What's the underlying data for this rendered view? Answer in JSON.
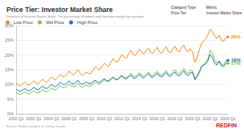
{
  "chart_data": {
    "type": "line",
    "title": "Price Tier: Investor Market Share",
    "subtitle": "Definition of Investor Market Share: The percentage of homes sold that were bought by investors",
    "filters": [
      {
        "label": "Category Type",
        "value": "Price Tier"
      },
      {
        "label": "Metric",
        "value": "Investor Market Share"
      }
    ],
    "source": "Source: Redfin analysis of county records",
    "logo": "REDFIN",
    "legend": "top-left",
    "grid": true,
    "categories": [
      "2000 Q1",
      null,
      null,
      null,
      null,
      null,
      null,
      null,
      "2002 Q1",
      null,
      null,
      null,
      null,
      null,
      null,
      null,
      "2004 Q1",
      null,
      null,
      null,
      null,
      null,
      null,
      null,
      "2006 Q1",
      null,
      null,
      null,
      null,
      null,
      null,
      null,
      "2008 Q1",
      null,
      null,
      null,
      null,
      null,
      null,
      null,
      "2010 Q1",
      null,
      null,
      null,
      null,
      null,
      null,
      null,
      "2012 Q1",
      null,
      null,
      null,
      null,
      null,
      null,
      null,
      "2014 Q1",
      null,
      null,
      null,
      null,
      null,
      null,
      null,
      "2016 Q1",
      null,
      null,
      null,
      null,
      null,
      null,
      null,
      "2018 Q1",
      null,
      null,
      null,
      null,
      null,
      null,
      null,
      "2020 Q1",
      null,
      null,
      null,
      null,
      null,
      null,
      null,
      "2022 Q1",
      null,
      null,
      null,
      null,
      null,
      null,
      null,
      "2024 Q1"
    ],
    "ylim": [
      0,
      30
    ],
    "yticks": [
      {
        "value": 0,
        "label": "0%"
      },
      {
        "value": 5,
        "label": "5%"
      },
      {
        "value": 10,
        "label": "10%"
      },
      {
        "value": 15,
        "label": "15%"
      },
      {
        "value": 20,
        "label": "20%"
      },
      {
        "value": 25,
        "label": "25%"
      },
      {
        "value": 30,
        "label": "30%"
      }
    ],
    "series": [
      {
        "name": "Low Price",
        "color": "#f28a1e",
        "values": [
          10.5,
          9.8,
          9.5,
          10.2,
          10.8,
          10.0,
          9.8,
          10.5,
          11.2,
          10.4,
          10.2,
          11.0,
          11.8,
          11.0,
          10.8,
          11.6,
          12.5,
          11.8,
          11.6,
          12.4,
          13.5,
          12.8,
          12.6,
          13.4,
          14.6,
          13.8,
          13.2,
          14.0,
          15.0,
          13.8,
          13.0,
          13.6,
          14.2,
          13.6,
          13.8,
          15.0,
          16.0,
          15.2,
          15.0,
          16.2,
          17.2,
          16.4,
          16.2,
          17.6,
          18.8,
          17.8,
          17.6,
          19.0,
          20.2,
          19.2,
          19.0,
          20.4,
          21.6,
          20.2,
          19.8,
          21.0,
          22.0,
          20.8,
          20.4,
          21.6,
          22.4,
          21.0,
          20.6,
          21.8,
          22.6,
          21.0,
          20.6,
          21.8,
          22.8,
          21.2,
          20.8,
          22.0,
          23.0,
          21.4,
          21.0,
          22.4,
          23.4,
          21.6,
          21.0,
          22.2,
          21.0,
          17.6,
          19.0,
          21.6,
          24.0,
          24.8,
          25.6,
          27.0,
          28.8,
          28.0,
          26.5,
          25.6,
          26.8,
          25.0,
          24.6,
          25.8,
          26.2
        ],
        "value_labels": [
          null,
          null,
          null,
          null,
          null,
          null,
          null,
          null,
          null,
          null,
          null,
          null,
          null,
          null,
          null,
          null,
          null,
          null,
          null,
          null,
          null,
          null,
          null,
          null,
          null,
          null,
          null,
          null,
          null,
          null,
          null,
          null,
          null,
          null,
          null,
          null,
          null,
          null,
          null,
          null,
          null,
          null,
          null,
          null,
          null,
          null,
          null,
          null,
          null,
          null,
          null,
          null,
          null,
          null,
          null,
          null,
          null,
          null,
          null,
          null,
          null,
          null,
          null,
          null,
          null,
          null,
          null,
          null,
          null,
          null,
          null,
          null,
          null,
          null,
          null,
          null,
          null,
          null,
          null,
          null,
          null,
          null,
          null,
          null,
          null,
          null,
          null,
          null,
          null,
          null,
          null,
          null,
          null,
          null,
          null,
          null,
          "26%"
        ]
      },
      {
        "name": "Mid Price",
        "color": "#7dc242",
        "values": [
          7.2,
          6.8,
          6.6,
          7.0,
          7.4,
          7.0,
          6.8,
          7.3,
          7.8,
          7.3,
          7.1,
          7.6,
          8.2,
          7.7,
          7.5,
          8.0,
          8.8,
          8.3,
          8.1,
          8.7,
          9.6,
          9.0,
          8.8,
          9.4,
          10.2,
          9.5,
          9.2,
          9.6,
          10.4,
          9.5,
          9.0,
          9.4,
          9.8,
          9.4,
          9.5,
          10.2,
          10.8,
          10.2,
          10.1,
          10.9,
          11.6,
          11.0,
          10.9,
          11.8,
          12.4,
          11.7,
          11.6,
          12.5,
          13.2,
          12.4,
          12.2,
          13.0,
          13.8,
          12.8,
          12.6,
          13.4,
          14.0,
          13.0,
          12.8,
          13.6,
          14.2,
          13.2,
          12.9,
          13.8,
          14.4,
          13.4,
          13.1,
          14.0,
          14.6,
          13.6,
          13.3,
          14.2,
          15.0,
          14.0,
          13.6,
          14.6,
          15.4,
          14.2,
          13.8,
          14.8,
          14.6,
          12.0,
          13.0,
          14.4,
          16.2,
          16.8,
          17.6,
          19.0,
          21.6,
          20.6,
          18.4,
          17.2,
          17.8,
          16.2,
          15.8,
          17.0,
          17.2
        ],
        "value_labels": [
          null,
          null,
          null,
          null,
          null,
          null,
          null,
          null,
          null,
          null,
          null,
          null,
          null,
          null,
          null,
          null,
          null,
          null,
          null,
          null,
          null,
          null,
          null,
          null,
          null,
          null,
          null,
          null,
          null,
          null,
          null,
          null,
          null,
          null,
          null,
          null,
          null,
          null,
          null,
          null,
          null,
          null,
          null,
          null,
          null,
          null,
          null,
          null,
          null,
          null,
          null,
          null,
          null,
          null,
          null,
          null,
          null,
          null,
          null,
          null,
          null,
          null,
          null,
          null,
          null,
          null,
          null,
          null,
          null,
          null,
          null,
          null,
          null,
          null,
          null,
          null,
          null,
          null,
          null,
          null,
          null,
          null,
          null,
          null,
          null,
          null,
          null,
          null,
          null,
          null,
          null,
          null,
          null,
          null,
          null,
          null,
          "17%"
        ]
      },
      {
        "name": "High Price",
        "color": "#1f6fb5",
        "values": [
          8.4,
          7.8,
          7.6,
          8.1,
          8.6,
          8.0,
          7.8,
          8.3,
          9.0,
          8.4,
          8.2,
          8.8,
          9.4,
          8.8,
          8.6,
          9.2,
          10.0,
          9.4,
          9.2,
          9.8,
          10.8,
          10.1,
          9.9,
          10.5,
          11.2,
          10.4,
          10.1,
          10.6,
          11.4,
          10.4,
          10.0,
          10.4,
          10.8,
          10.2,
          10.3,
          11.0,
          11.4,
          10.8,
          10.7,
          11.4,
          12.0,
          11.3,
          11.2,
          12.0,
          12.4,
          11.7,
          11.6,
          12.4,
          12.8,
          12.0,
          11.9,
          12.6,
          13.2,
          12.2,
          12.0,
          12.8,
          13.4,
          12.4,
          12.2,
          13.0,
          13.6,
          12.6,
          12.4,
          13.2,
          13.8,
          12.8,
          12.5,
          13.4,
          14.0,
          13.0,
          12.7,
          13.6,
          14.2,
          13.2,
          12.9,
          13.8,
          14.6,
          13.4,
          13.0,
          14.0,
          14.0,
          11.6,
          12.6,
          14.0,
          16.0,
          16.6,
          17.0,
          18.2,
          20.2,
          19.0,
          17.2,
          16.6,
          18.0,
          16.6,
          16.4,
          17.6,
          18.2
        ],
        "value_labels": [
          null,
          null,
          null,
          null,
          null,
          null,
          null,
          null,
          null,
          null,
          null,
          null,
          null,
          null,
          null,
          null,
          null,
          null,
          null,
          null,
          null,
          null,
          null,
          null,
          null,
          null,
          null,
          null,
          null,
          null,
          null,
          null,
          null,
          null,
          null,
          null,
          null,
          null,
          null,
          null,
          null,
          null,
          null,
          null,
          null,
          null,
          null,
          null,
          null,
          null,
          null,
          null,
          null,
          null,
          null,
          null,
          null,
          null,
          null,
          null,
          null,
          null,
          null,
          null,
          null,
          null,
          null,
          null,
          null,
          null,
          null,
          null,
          null,
          null,
          null,
          null,
          null,
          null,
          null,
          null,
          null,
          null,
          null,
          null,
          null,
          null,
          null,
          null,
          null,
          null,
          null,
          null,
          null,
          null,
          null,
          null,
          "18%"
        ]
      }
    ]
  }
}
